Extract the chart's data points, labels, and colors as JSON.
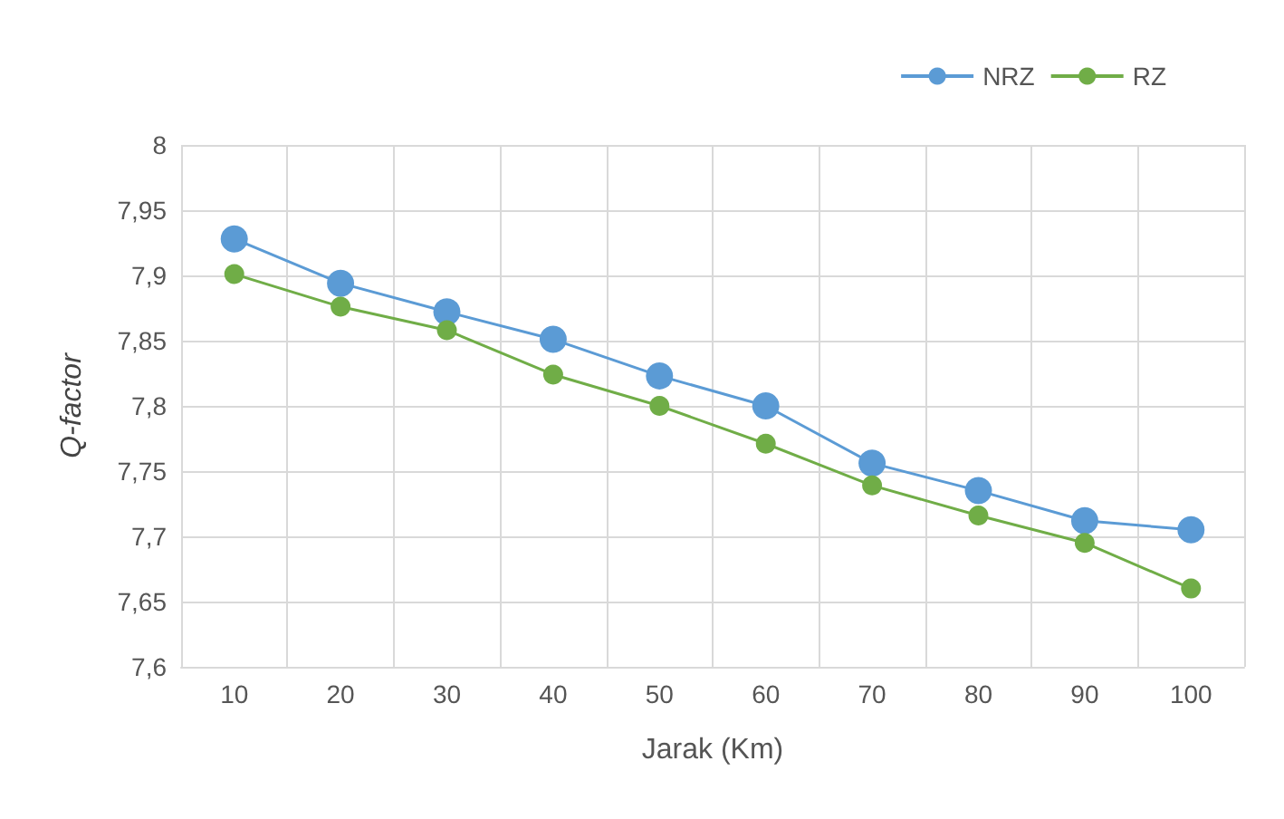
{
  "chart_data": {
    "type": "line",
    "xlabel": "Jarak (Km)",
    "ylabel": "Q-factor",
    "categories": [
      "10",
      "20",
      "30",
      "40",
      "50",
      "60",
      "70",
      "80",
      "90",
      "100"
    ],
    "series": [
      {
        "name": "NRZ",
        "color": "#5b9bd5",
        "values": [
          7.928,
          7.894,
          7.872,
          7.851,
          7.823,
          7.8,
          7.756,
          7.735,
          7.712,
          7.705
        ]
      },
      {
        "name": "RZ",
        "color": "#70ad47",
        "values": [
          7.901,
          7.876,
          7.858,
          7.824,
          7.8,
          7.771,
          7.739,
          7.716,
          7.695,
          7.66
        ]
      }
    ],
    "ylim": [
      7.6,
      8
    ],
    "yticks": [
      {
        "value": 7.6,
        "label": "7,6"
      },
      {
        "value": 7.65,
        "label": "7,65"
      },
      {
        "value": 7.7,
        "label": "7,7"
      },
      {
        "value": 7.75,
        "label": "7,75"
      },
      {
        "value": 7.8,
        "label": "7,8"
      },
      {
        "value": 7.85,
        "label": "7,85"
      },
      {
        "value": 7.9,
        "label": "7,9"
      },
      {
        "value": 7.95,
        "label": "7,95"
      },
      {
        "value": 8,
        "label": "8"
      }
    ],
    "grid": true,
    "legend": "top right",
    "marker": "circle",
    "line_style": "solid"
  }
}
